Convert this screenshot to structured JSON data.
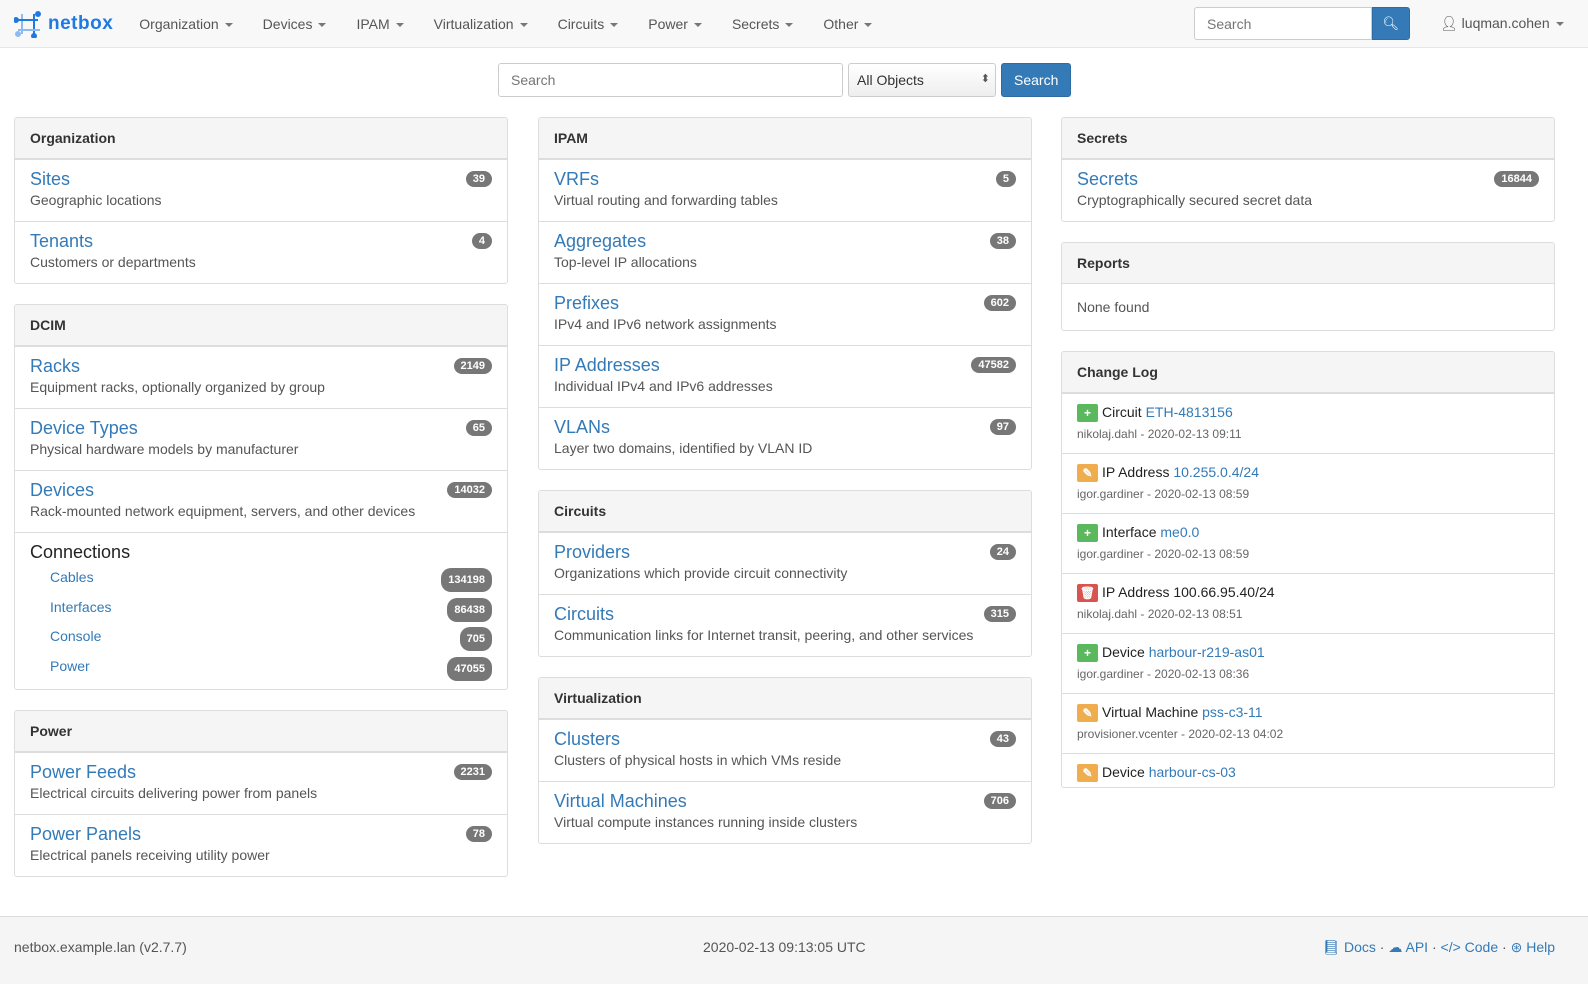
{
  "navbar": {
    "brand": "netbox",
    "menus": [
      "Organization",
      "Devices",
      "IPAM",
      "Virtualization",
      "Circuits",
      "Power",
      "Secrets",
      "Other"
    ],
    "search_placeholder": "Search",
    "user": "luqman.cohen"
  },
  "search": {
    "placeholder": "Search",
    "select": "All Objects",
    "button": "Search"
  },
  "columns": [
    [
      {
        "title": "Organization",
        "items": [
          {
            "t": "Sites",
            "d": "Geographic locations",
            "c": "39"
          },
          {
            "t": "Tenants",
            "d": "Customers or departments",
            "c": "4"
          }
        ]
      },
      {
        "title": "DCIM",
        "items": [
          {
            "t": "Racks",
            "d": "Equipment racks, optionally organized by group",
            "c": "2149"
          },
          {
            "t": "Device Types",
            "d": "Physical hardware models by manufacturer",
            "c": "65"
          },
          {
            "t": "Devices",
            "d": "Rack-mounted network equipment, servers, and other devices",
            "c": "14032"
          }
        ],
        "connections": {
          "title": "Connections",
          "items": [
            {
              "t": "Cables",
              "c": "134198"
            },
            {
              "t": "Interfaces",
              "c": "86438"
            },
            {
              "t": "Console",
              "c": "705"
            },
            {
              "t": "Power",
              "c": "47055"
            }
          ]
        }
      },
      {
        "title": "Power",
        "items": [
          {
            "t": "Power Feeds",
            "d": "Electrical circuits delivering power from panels",
            "c": "2231"
          },
          {
            "t": "Power Panels",
            "d": "Electrical panels receiving utility power",
            "c": "78"
          }
        ]
      }
    ],
    [
      {
        "title": "IPAM",
        "items": [
          {
            "t": "VRFs",
            "d": "Virtual routing and forwarding tables",
            "c": "5"
          },
          {
            "t": "Aggregates",
            "d": "Top-level IP allocations",
            "c": "38"
          },
          {
            "t": "Prefixes",
            "d": "IPv4 and IPv6 network assignments",
            "c": "602"
          },
          {
            "t": "IP Addresses",
            "d": "Individual IPv4 and IPv6 addresses",
            "c": "47582"
          },
          {
            "t": "VLANs",
            "d": "Layer two domains, identified by VLAN ID",
            "c": "97"
          }
        ]
      },
      {
        "title": "Circuits",
        "items": [
          {
            "t": "Providers",
            "d": "Organizations which provide circuit connectivity",
            "c": "24"
          },
          {
            "t": "Circuits",
            "d": "Communication links for Internet transit, peering, and other services",
            "c": "315"
          }
        ]
      },
      {
        "title": "Virtualization",
        "items": [
          {
            "t": "Clusters",
            "d": "Clusters of physical hosts in which VMs reside",
            "c": "43"
          },
          {
            "t": "Virtual Machines",
            "d": "Virtual compute instances running inside clusters",
            "c": "706"
          }
        ]
      }
    ],
    [
      {
        "title": "Secrets",
        "items": [
          {
            "t": "Secrets",
            "d": "Cryptographically secured secret data",
            "c": "16844"
          }
        ]
      },
      {
        "title": "Reports",
        "none": "None found"
      }
    ]
  ],
  "changelog": {
    "title": "Change Log",
    "entries": [
      {
        "action": "create",
        "type": "Circuit",
        "obj": "ETH-4813156",
        "meta": "nikolaj.dahl - 2020-02-13 09:11"
      },
      {
        "action": "update",
        "type": "IP Address",
        "obj": "10.255.0.4/24",
        "meta": "igor.gardiner - 2020-02-13 08:59"
      },
      {
        "action": "create",
        "type": "Interface",
        "obj": "me0.0",
        "meta": "igor.gardiner - 2020-02-13 08:59"
      },
      {
        "action": "delete",
        "type": "IP Address",
        "obj": "100.66.95.40/24",
        "meta": "nikolaj.dahl - 2020-02-13 08:51"
      },
      {
        "action": "create",
        "type": "Device",
        "obj": "harbour-r219-as01",
        "meta": "igor.gardiner - 2020-02-13 08:36"
      },
      {
        "action": "update",
        "type": "Virtual Machine",
        "obj": "pss-c3-11",
        "meta": "provisioner.vcenter - 2020-02-13 04:02"
      },
      {
        "action": "update",
        "type": "Device",
        "obj": "harbour-cs-03",
        "meta": ""
      }
    ]
  },
  "colors": {
    "create": "#5cb85c",
    "update": "#f0ad4e",
    "delete": "#d9534f",
    "link": "#337ab7"
  },
  "footer": {
    "host": "netbox.example.lan (v2.7.7)",
    "time": "2020-02-13 09:13:05 UTC",
    "links": [
      "Docs",
      "API",
      "Code",
      "Help"
    ]
  }
}
